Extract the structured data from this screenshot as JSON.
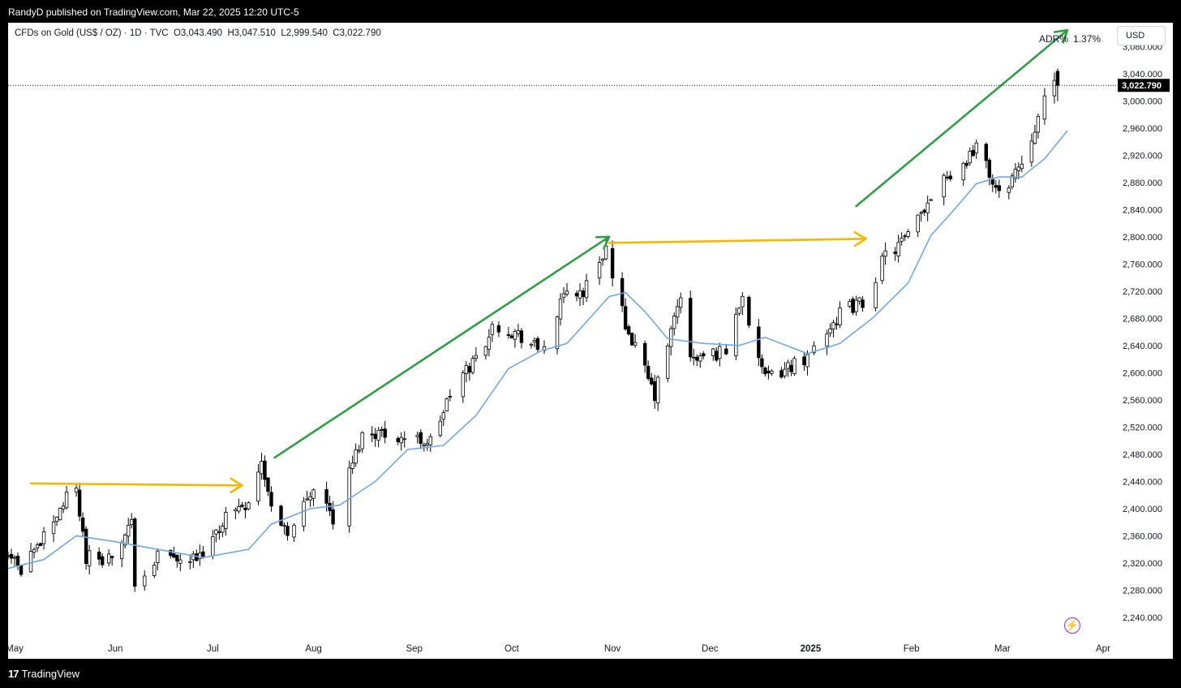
{
  "header": {
    "published": "RandyD published on TradingView.com, Mar 22, 2025 12:20 UTC-5"
  },
  "footer": {
    "brand": "TradingView",
    "logo_mark": "17"
  },
  "legend": {
    "symbol": "CFDs on Gold (US$ / OZ) · 1D · TVC",
    "open": "O3,043.490",
    "high": "H3,047.510",
    "low": "L2,999.540",
    "close": "C3,022.790"
  },
  "indicator": {
    "name": "ADR%",
    "value": "1.37%"
  },
  "currency_button": "USD",
  "last_price_label": "3,022.790",
  "colors": {
    "up_fill": "#ffffff",
    "down_fill": "#000000",
    "candle_border": "#000000",
    "ma": "#6fa8e8",
    "green_arrow": "#2ea043",
    "orange_arrow": "#f5b700",
    "price_label_bg": "#000000"
  },
  "chart_data": {
    "type": "candlestick",
    "title": "CFDs on Gold (US$ / OZ) · 1D · TVC",
    "y_axis": {
      "range": [
        2210,
        3115
      ],
      "ticks": [
        2240,
        2280,
        2320,
        2360,
        2400,
        2440,
        2480,
        2520,
        2560,
        2600,
        2640,
        2680,
        2720,
        2760,
        2800,
        2840,
        2880,
        2920,
        2960,
        3000,
        3040,
        3080
      ],
      "position": "right"
    },
    "x_axis": {
      "range": [
        "2024-04-29",
        "2025-04-05"
      ],
      "labels": [
        {
          "date": "2024-05-01",
          "text": "May"
        },
        {
          "date": "2024-06-01",
          "text": "Jun"
        },
        {
          "date": "2024-07-01",
          "text": "Jul"
        },
        {
          "date": "2024-08-01",
          "text": "Aug"
        },
        {
          "date": "2024-09-01",
          "text": "Sep"
        },
        {
          "date": "2024-10-01",
          "text": "Oct"
        },
        {
          "date": "2024-11-01",
          "text": "Nov"
        },
        {
          "date": "2024-12-01",
          "text": "Dec"
        },
        {
          "date": "2025-01-01",
          "text": "2025"
        },
        {
          "date": "2025-02-01",
          "text": "Feb"
        },
        {
          "date": "2025-03-01",
          "text": "Mar"
        },
        {
          "date": "2025-04-01",
          "text": "Apr"
        }
      ]
    },
    "last_price": 3022.79,
    "close_path": [
      [
        "2024-04-29",
        2336
      ],
      [
        "2024-05-03",
        2301
      ],
      [
        "2024-05-10",
        2360
      ],
      [
        "2024-05-17",
        2415
      ],
      [
        "2024-05-20",
        2425
      ],
      [
        "2024-05-23",
        2330
      ],
      [
        "2024-05-31",
        2327
      ],
      [
        "2024-06-06",
        2375
      ],
      [
        "2024-06-07",
        2295
      ],
      [
        "2024-06-14",
        2330
      ],
      [
        "2024-06-21",
        2320
      ],
      [
        "2024-06-28",
        2326
      ],
      [
        "2024-07-05",
        2390
      ],
      [
        "2024-07-12",
        2412
      ],
      [
        "2024-07-16",
        2469
      ],
      [
        "2024-07-19",
        2400
      ],
      [
        "2024-07-25",
        2363
      ],
      [
        "2024-08-02",
        2445
      ],
      [
        "2024-08-07",
        2382
      ],
      [
        "2024-08-16",
        2508
      ],
      [
        "2024-08-20",
        2513
      ],
      [
        "2024-08-30",
        2503
      ],
      [
        "2024-09-06",
        2498
      ],
      [
        "2024-09-13",
        2577
      ],
      [
        "2024-09-20",
        2622
      ],
      [
        "2024-09-26",
        2672
      ],
      [
        "2024-10-04",
        2653
      ],
      [
        "2024-10-10",
        2630
      ],
      [
        "2024-10-18",
        2720
      ],
      [
        "2024-10-23",
        2718
      ],
      [
        "2024-10-30",
        2785
      ],
      [
        "2024-11-01",
        2735
      ],
      [
        "2024-11-06",
        2660
      ],
      [
        "2024-11-14",
        2565
      ],
      [
        "2024-11-22",
        2715
      ],
      [
        "2024-11-25",
        2617
      ],
      [
        "2024-12-06",
        2633
      ],
      [
        "2024-12-11",
        2717
      ],
      [
        "2024-12-18",
        2588
      ],
      [
        "2024-12-31",
        2625
      ],
      [
        "2025-01-10",
        2689
      ],
      [
        "2025-01-17",
        2703
      ],
      [
        "2025-01-24",
        2771
      ],
      [
        "2025-01-31",
        2798
      ],
      [
        "2025-02-07",
        2861
      ],
      [
        "2025-02-11",
        2897
      ],
      [
        "2025-02-14",
        2883
      ],
      [
        "2025-02-21",
        2936
      ],
      [
        "2025-02-28",
        2858
      ],
      [
        "2025-03-07",
        2911
      ],
      [
        "2025-03-13",
        2988
      ],
      [
        "2025-03-18",
        3034
      ],
      [
        "2025-03-21",
        3022.79
      ]
    ],
    "moving_average": [
      [
        "2024-04-29",
        2312
      ],
      [
        "2024-05-10",
        2325
      ],
      [
        "2024-05-20",
        2360
      ],
      [
        "2024-05-31",
        2352
      ],
      [
        "2024-06-14",
        2340
      ],
      [
        "2024-06-28",
        2328
      ],
      [
        "2024-07-12",
        2340
      ],
      [
        "2024-07-19",
        2377
      ],
      [
        "2024-07-31",
        2400
      ],
      [
        "2024-08-09",
        2405
      ],
      [
        "2024-08-20",
        2440
      ],
      [
        "2024-08-30",
        2487
      ],
      [
        "2024-09-10",
        2493
      ],
      [
        "2024-09-20",
        2537
      ],
      [
        "2024-09-30",
        2606
      ],
      [
        "2024-10-10",
        2632
      ],
      [
        "2024-10-18",
        2643
      ],
      [
        "2024-10-31",
        2712
      ],
      [
        "2024-11-05",
        2718
      ],
      [
        "2024-11-11",
        2690
      ],
      [
        "2024-11-18",
        2650
      ],
      [
        "2024-11-29",
        2643
      ],
      [
        "2024-12-10",
        2640
      ],
      [
        "2024-12-18",
        2652
      ],
      [
        "2024-12-31",
        2628
      ],
      [
        "2025-01-10",
        2643
      ],
      [
        "2025-01-20",
        2680
      ],
      [
        "2025-01-31",
        2732
      ],
      [
        "2025-02-07",
        2802
      ],
      [
        "2025-02-14",
        2839
      ],
      [
        "2025-02-21",
        2878
      ],
      [
        "2025-02-28",
        2888
      ],
      [
        "2025-03-07",
        2888
      ],
      [
        "2025-03-14",
        2915
      ],
      [
        "2025-03-21",
        2956
      ]
    ],
    "arrows": [
      {
        "color": "orange",
        "from": [
          "2024-05-06",
          2437
        ],
        "to": [
          "2024-07-10",
          2434
        ]
      },
      {
        "color": "green",
        "from": [
          "2024-07-20",
          2475
        ],
        "to": [
          "2024-10-31",
          2800
        ]
      },
      {
        "color": "orange",
        "from": [
          "2024-10-31",
          2791
        ],
        "to": [
          "2025-01-18",
          2797
        ]
      },
      {
        "color": "green",
        "from": [
          "2025-01-15",
          2845
        ],
        "to": [
          "2025-03-21",
          3104
        ]
      }
    ],
    "annotations": [
      "ADR% 1.37%"
    ]
  }
}
